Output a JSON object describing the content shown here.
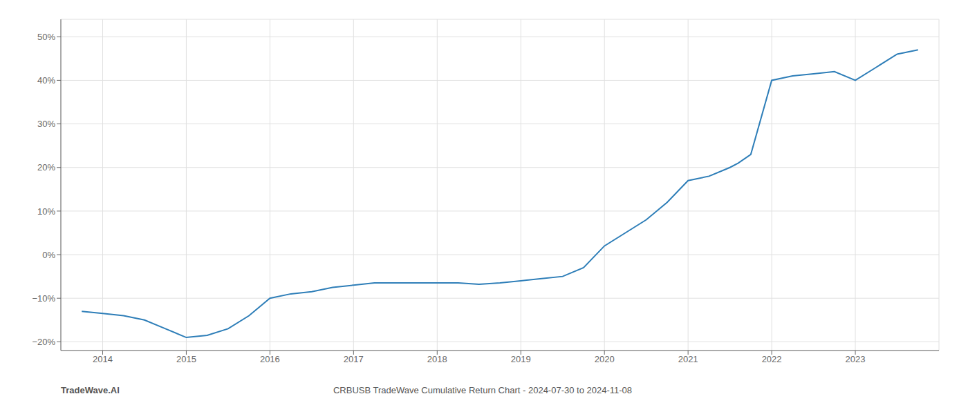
{
  "chart_data": {
    "type": "line",
    "title": "CRBUSB TradeWave Cumulative Return Chart - 2024-07-30 to 2024-11-08",
    "annotations": [
      "TradeWave.AI"
    ],
    "x": [
      2013.75,
      2014.0,
      2014.25,
      2014.5,
      2014.75,
      2015.0,
      2015.25,
      2015.5,
      2015.75,
      2016.0,
      2016.25,
      2016.5,
      2016.75,
      2017.0,
      2017.25,
      2017.5,
      2017.75,
      2018.0,
      2018.25,
      2018.5,
      2018.75,
      2019.0,
      2019.25,
      2019.5,
      2019.75,
      2020.0,
      2020.25,
      2020.5,
      2020.75,
      2021.0,
      2021.25,
      2021.5,
      2021.6,
      2021.75,
      2022.0,
      2022.25,
      2022.5,
      2022.75,
      2023.0,
      2023.25,
      2023.5,
      2023.75
    ],
    "values": [
      -13,
      -13.5,
      -14,
      -15,
      -17,
      -19,
      -18.5,
      -17,
      -14,
      -10,
      -9,
      -8.5,
      -7.5,
      -7,
      -6.5,
      -6.5,
      -6.5,
      -6.5,
      -6.5,
      -6.8,
      -6.5,
      -6,
      -5.5,
      -5,
      -3,
      2,
      5,
      8,
      12,
      17,
      18,
      20,
      21,
      23,
      40,
      41,
      41.5,
      42,
      40,
      43,
      46,
      47
    ],
    "color": "#2e7eb8",
    "xlim": [
      2013.5,
      2024.0
    ],
    "ylim": [
      -22,
      54
    ],
    "xticks": [
      2014,
      2015,
      2016,
      2017,
      2018,
      2019,
      2020,
      2021,
      2022,
      2023
    ],
    "yticks": [
      {
        "value": -20,
        "label": "−20%"
      },
      {
        "value": -10,
        "label": "−10%"
      },
      {
        "value": 0,
        "label": "0%"
      },
      {
        "value": 10,
        "label": "10%"
      },
      {
        "value": 20,
        "label": "20%"
      },
      {
        "value": 30,
        "label": "30%"
      },
      {
        "value": 40,
        "label": "40%"
      },
      {
        "value": 50,
        "label": "50%"
      }
    ],
    "grid": true
  }
}
